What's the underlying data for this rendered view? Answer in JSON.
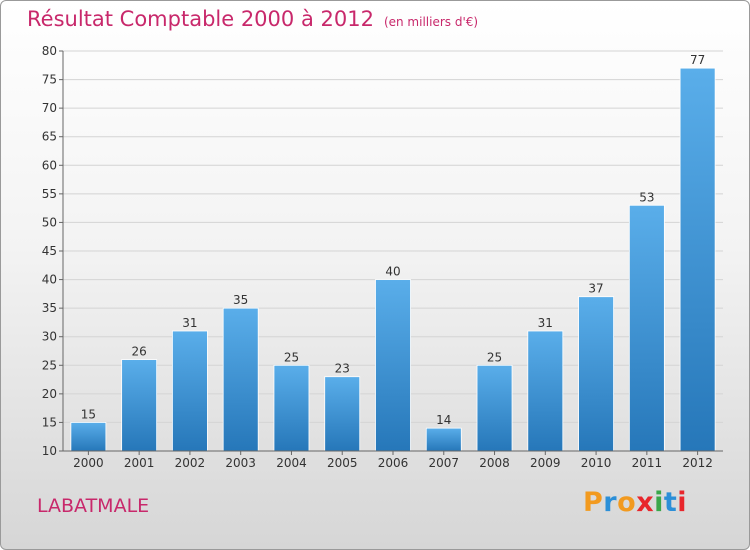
{
  "page": {
    "title": "Résultat Comptable 2000 à 2012",
    "subtitle": "(en milliers d'€)",
    "commune": "LABATMALE"
  },
  "logo": {
    "letters": [
      "P",
      "r",
      "o",
      "x",
      "i",
      "t",
      "i"
    ],
    "colors": [
      "#f29a1f",
      "#2b8fd8",
      "#f29a1f",
      "#e8262c",
      "#3aa74a",
      "#2b8fd8",
      "#e8262c"
    ]
  },
  "colors": {
    "accent": "#c8286b",
    "bar_top": "#5aaeea",
    "bar_bottom": "#2677b9",
    "grid": "#d4d4d4",
    "axis": "#666666",
    "text": "#333333"
  },
  "chart_data": {
    "type": "bar",
    "categories": [
      "2000",
      "2001",
      "2002",
      "2003",
      "2004",
      "2005",
      "2006",
      "2007",
      "2008",
      "2009",
      "2010",
      "2011",
      "2012"
    ],
    "values": [
      15,
      26,
      31,
      35,
      25,
      23,
      40,
      14,
      25,
      31,
      37,
      53,
      77
    ],
    "title": "Résultat Comptable 2000 à 2012",
    "xlabel": "",
    "ylabel": "",
    "ylim": [
      10,
      80
    ],
    "yticks": [
      10,
      15,
      20,
      25,
      30,
      35,
      40,
      45,
      50,
      55,
      60,
      65,
      70,
      75,
      80
    ],
    "grid": true,
    "data_labels": true
  }
}
